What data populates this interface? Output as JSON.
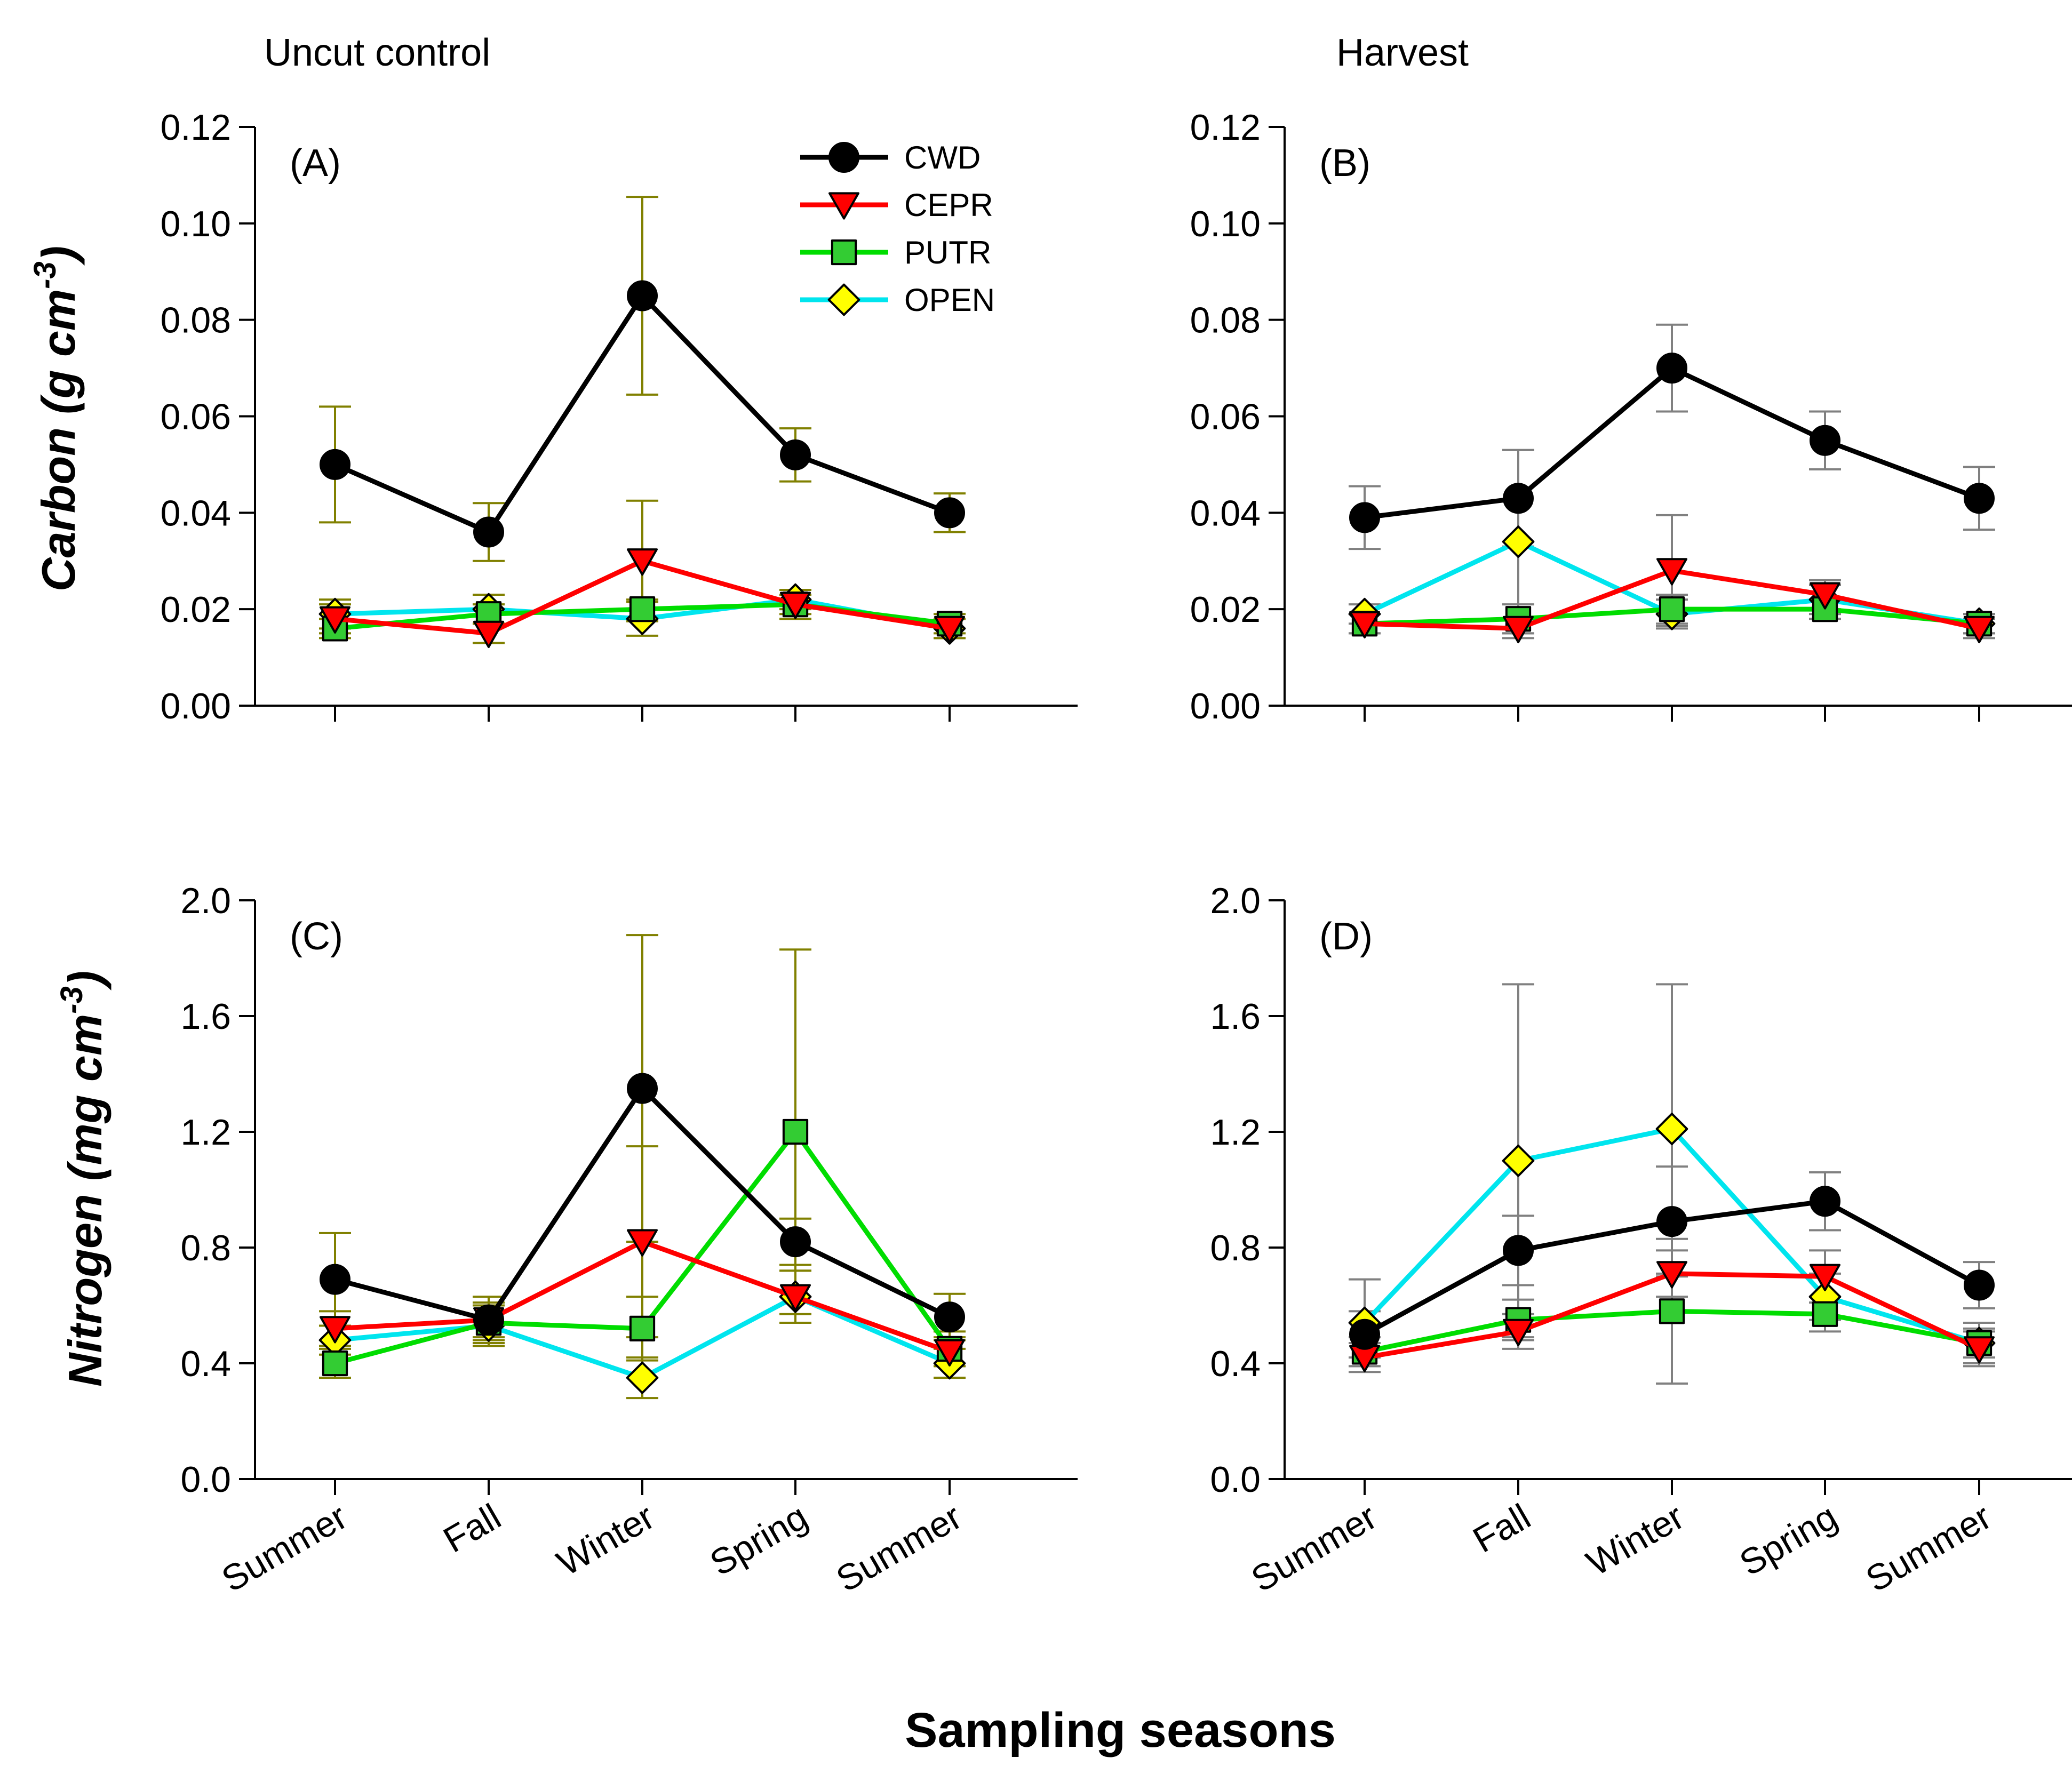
{
  "figure": {
    "column_titles": [
      "Uncut control",
      "Harvest"
    ],
    "shared_xlabel": "Sampling seasons",
    "row_ylabels": [
      {
        "prefix": "Carbon (g cm",
        "sup": "-3",
        "suffix": ")"
      },
      {
        "prefix": "Nitrogen (mg cm",
        "sup": "-3",
        "suffix": ")"
      }
    ]
  },
  "legend": [
    {
      "name": "CWD",
      "color": "#000000",
      "fill": "#000000",
      "marker": "circle"
    },
    {
      "name": "CEPR",
      "color": "#ff0000",
      "fill": "#ff0000",
      "marker": "triangle-down"
    },
    {
      "name": "PUTR",
      "color": "#00dd00",
      "fill": "#33cc33",
      "marker": "square"
    },
    {
      "name": "OPEN",
      "color": "#00e5ee",
      "fill": "#ffff00",
      "marker": "diamond"
    }
  ],
  "chart_data": [
    {
      "panel": "(A)",
      "type": "line",
      "title": "Uncut control",
      "ylabel": "Carbon (g cm-3)",
      "xlabel": "Sampling seasons",
      "categories": [
        "Summer",
        "Fall",
        "Winter",
        "Spring",
        "Summer"
      ],
      "ylim": [
        0,
        0.12
      ],
      "yticks": [
        "0.00",
        "0.02",
        "0.04",
        "0.06",
        "0.08",
        "0.10",
        "0.12"
      ],
      "errorbar_color": "#808000",
      "series": [
        {
          "name": "CWD",
          "values": [
            0.05,
            0.036,
            0.085,
            0.052,
            0.04
          ],
          "errors": [
            0.012,
            0.006,
            0.0205,
            0.0055,
            0.004
          ]
        },
        {
          "name": "CEPR",
          "values": [
            0.018,
            0.015,
            0.03,
            0.021,
            0.016
          ],
          "errors": [
            0.003,
            0.002,
            0.0125,
            0.003,
            0.002
          ]
        },
        {
          "name": "PUTR",
          "values": [
            0.016,
            0.019,
            0.02,
            0.021,
            0.017
          ],
          "errors": [
            0.002,
            0.002,
            0.002,
            0.002,
            0.002
          ]
        },
        {
          "name": "OPEN",
          "values": [
            0.019,
            0.02,
            0.018,
            0.022,
            0.016
          ],
          "errors": [
            0.003,
            0.003,
            0.0035,
            0.002,
            0.002
          ]
        }
      ]
    },
    {
      "panel": "(B)",
      "type": "line",
      "title": "Harvest",
      "ylabel": "Carbon (g cm-3)",
      "xlabel": "Sampling seasons",
      "categories": [
        "Summer",
        "Fall",
        "Winter",
        "Spring",
        "Summer"
      ],
      "ylim": [
        0,
        0.12
      ],
      "yticks": [
        "0.00",
        "0.02",
        "0.04",
        "0.06",
        "0.08",
        "0.10",
        "0.12"
      ],
      "errorbar_color": "#808080",
      "series": [
        {
          "name": "CWD",
          "values": [
            0.039,
            0.043,
            0.07,
            0.055,
            0.043
          ],
          "errors": [
            0.0065,
            0.01,
            0.009,
            0.006,
            0.0065
          ]
        },
        {
          "name": "CEPR",
          "values": [
            0.017,
            0.016,
            0.028,
            0.023,
            0.016
          ],
          "errors": [
            0.002,
            0.002,
            0.0115,
            0.003,
            0.002
          ]
        },
        {
          "name": "PUTR",
          "values": [
            0.017,
            0.018,
            0.02,
            0.02,
            0.017
          ],
          "errors": [
            0.002,
            0.003,
            0.003,
            0.002,
            0.002
          ]
        },
        {
          "name": "OPEN",
          "values": [
            0.019,
            0.034,
            0.019,
            0.022,
            0.017
          ],
          "errors": [
            0.002,
            0.019,
            0.003,
            0.003,
            0.002
          ]
        }
      ]
    },
    {
      "panel": "(C)",
      "type": "line",
      "title": "Uncut control",
      "ylabel": "Nitrogen (mg cm-3)",
      "xlabel": "Sampling seasons",
      "categories": [
        "Summer",
        "Fall",
        "Winter",
        "Spring",
        "Summer"
      ],
      "ylim": [
        0,
        2.0
      ],
      "yticks": [
        "0.0",
        "0.4",
        "0.8",
        "1.2",
        "1.6",
        "2.0"
      ],
      "errorbar_color": "#808000",
      "series": [
        {
          "name": "CWD",
          "values": [
            0.69,
            0.55,
            1.35,
            0.82,
            0.56
          ],
          "errors": [
            0.16,
            0.08,
            0.53,
            0.08,
            0.08
          ]
        },
        {
          "name": "CEPR",
          "values": [
            0.52,
            0.55,
            0.82,
            0.63,
            0.44
          ],
          "errors": [
            0.06,
            0.06,
            0.33,
            0.09,
            0.05
          ]
        },
        {
          "name": "PUTR",
          "values": [
            0.4,
            0.54,
            0.52,
            1.2,
            0.45
          ],
          "errors": [
            0.05,
            0.06,
            0.11,
            0.63,
            0.06
          ]
        },
        {
          "name": "OPEN",
          "values": [
            0.48,
            0.53,
            0.35,
            0.63,
            0.4
          ],
          "errors": [
            0.05,
            0.07,
            0.07,
            0.09,
            0.05
          ]
        }
      ]
    },
    {
      "panel": "(D)",
      "type": "line",
      "title": "Harvest",
      "ylabel": "Nitrogen (mg cm-3)",
      "xlabel": "Sampling seasons",
      "categories": [
        "Summer",
        "Fall",
        "Winter",
        "Spring",
        "Summer"
      ],
      "ylim": [
        0,
        2.0
      ],
      "yticks": [
        "0.0",
        "0.4",
        "0.8",
        "1.2",
        "1.6",
        "2.0"
      ],
      "errorbar_color": "#808080",
      "series": [
        {
          "name": "CWD",
          "values": [
            0.5,
            0.79,
            0.89,
            0.96,
            0.67
          ],
          "errors": [
            0.08,
            0.12,
            0.19,
            0.1,
            0.08
          ]
        },
        {
          "name": "CEPR",
          "values": [
            0.42,
            0.51,
            0.71,
            0.7,
            0.45
          ],
          "errors": [
            0.05,
            0.06,
            0.08,
            0.09,
            0.06
          ]
        },
        {
          "name": "PUTR",
          "values": [
            0.44,
            0.55,
            0.58,
            0.57,
            0.47
          ],
          "errors": [
            0.05,
            0.07,
            0.25,
            0.06,
            0.05
          ]
        },
        {
          "name": "OPEN",
          "values": [
            0.54,
            1.1,
            1.21,
            0.63,
            0.47
          ],
          "errors": [
            0.15,
            0.61,
            0.5,
            0.08,
            0.07
          ]
        }
      ]
    }
  ]
}
